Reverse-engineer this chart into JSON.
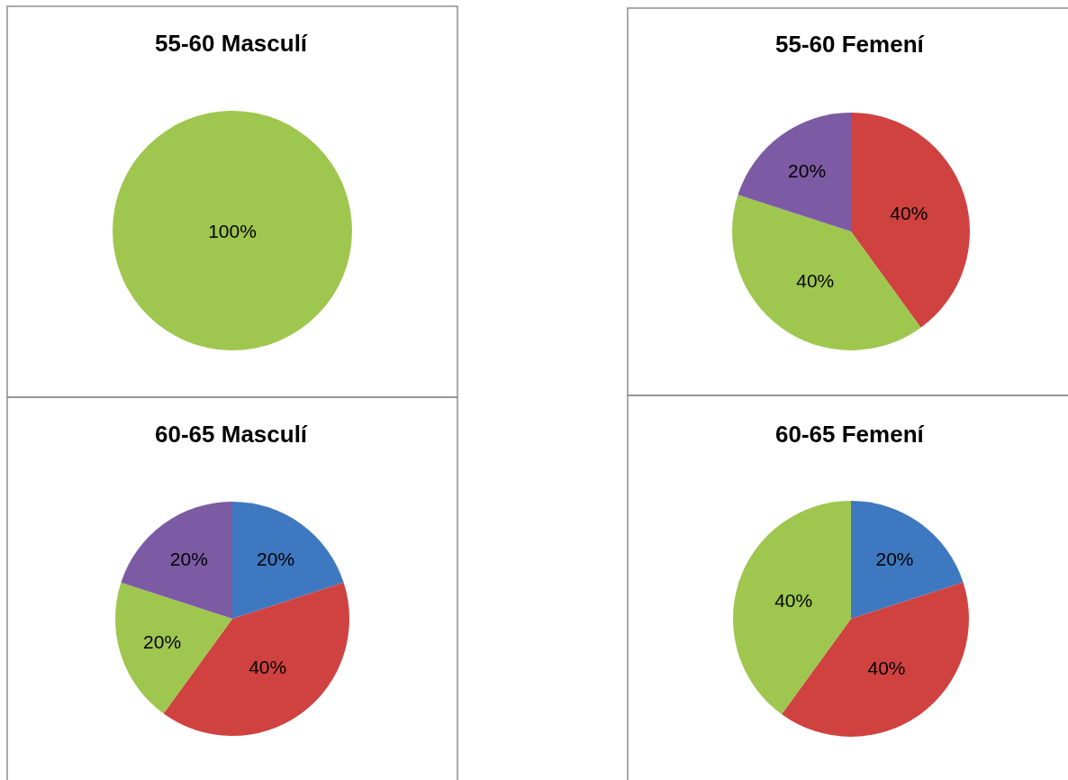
{
  "chart_data": [
    {
      "type": "pie",
      "title": "55-60 Masculí",
      "categories": [
        null
      ],
      "values": [
        100
      ],
      "colors": [
        "#9fc64e"
      ],
      "value_labels": [
        "100%"
      ]
    },
    {
      "type": "pie",
      "title": "55-60 Femení",
      "categories": [
        null,
        null,
        null
      ],
      "values": [
        40,
        40,
        20
      ],
      "colors": [
        "#cf4240",
        "#9fc64e",
        "#7c5ba4"
      ],
      "value_labels": [
        "40%",
        "40%",
        "20%"
      ]
    },
    {
      "type": "pie",
      "title": "60-65 Masculí",
      "categories": [
        null,
        null,
        null,
        null
      ],
      "values": [
        20,
        40,
        20,
        20
      ],
      "colors": [
        "#3e78c0",
        "#cf4240",
        "#9fc64e",
        "#7c5ba4"
      ],
      "value_labels": [
        "20%",
        "40%",
        "20%",
        "20%"
      ]
    },
    {
      "type": "pie",
      "title": "60-65 Femení",
      "categories": [
        null,
        null,
        null
      ],
      "values": [
        20,
        40,
        40
      ],
      "colors": [
        "#3e78c0",
        "#cf4240",
        "#9fc64e"
      ],
      "value_labels": [
        "20%",
        "40%",
        "40%"
      ]
    }
  ]
}
